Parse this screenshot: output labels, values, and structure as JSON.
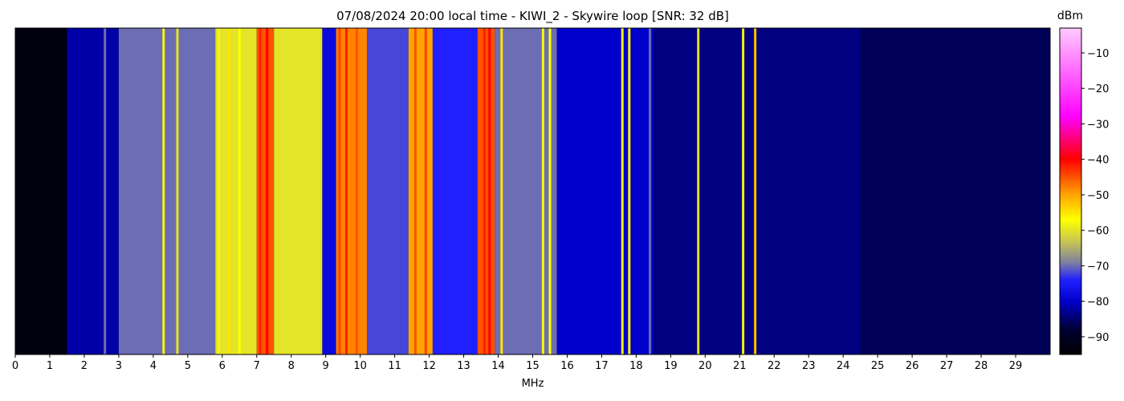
{
  "chart_data": {
    "type": "heatmap",
    "title": "07/08/2024 20:00 local time - KIWI_2 - Skywire loop [SNR: 32 dB]",
    "xlabel": "MHz",
    "ylabel": "",
    "xlim": [
      0,
      30
    ],
    "x_ticks": [
      0,
      1,
      2,
      3,
      4,
      5,
      6,
      7,
      8,
      9,
      10,
      11,
      12,
      13,
      14,
      15,
      16,
      17,
      18,
      19,
      20,
      21,
      22,
      23,
      24,
      25,
      26,
      27,
      28,
      29
    ],
    "colorbar": {
      "label": "dBm",
      "range": [
        -95,
        -3
      ],
      "ticks": [
        -10,
        -20,
        -30,
        -40,
        -50,
        -60,
        -70,
        -80,
        -90
      ],
      "colors": [
        {
          "value": -95,
          "color": "#000000"
        },
        {
          "value": -88,
          "color": "#000033"
        },
        {
          "value": -80,
          "color": "#0000cc"
        },
        {
          "value": -74,
          "color": "#2020ff"
        },
        {
          "value": -69,
          "color": "#8080a0"
        },
        {
          "value": -63,
          "color": "#c8c850"
        },
        {
          "value": -57,
          "color": "#ffff00"
        },
        {
          "value": -50,
          "color": "#ffa500"
        },
        {
          "value": -40,
          "color": "#ff0000"
        },
        {
          "value": -28,
          "color": "#ff00ff"
        },
        {
          "value": -3,
          "color": "#ffccff"
        }
      ]
    },
    "bands": [
      {
        "from_mhz": 0.0,
        "to_mhz": 1.5,
        "level_dbm": -93
      },
      {
        "from_mhz": 1.5,
        "to_mhz": 3.0,
        "level_dbm": -82
      },
      {
        "from_mhz": 3.0,
        "to_mhz": 5.8,
        "level_dbm": -70
      },
      {
        "from_mhz": 5.8,
        "to_mhz": 7.0,
        "level_dbm": -60
      },
      {
        "from_mhz": 7.0,
        "to_mhz": 7.5,
        "level_dbm": -45
      },
      {
        "from_mhz": 7.5,
        "to_mhz": 8.9,
        "level_dbm": -60
      },
      {
        "from_mhz": 8.9,
        "to_mhz": 9.3,
        "level_dbm": -78
      },
      {
        "from_mhz": 9.3,
        "to_mhz": 10.2,
        "level_dbm": -48
      },
      {
        "from_mhz": 10.2,
        "to_mhz": 11.4,
        "level_dbm": -72
      },
      {
        "from_mhz": 11.4,
        "to_mhz": 12.1,
        "level_dbm": -50
      },
      {
        "from_mhz": 12.1,
        "to_mhz": 13.4,
        "level_dbm": -74
      },
      {
        "from_mhz": 13.4,
        "to_mhz": 13.9,
        "level_dbm": -45
      },
      {
        "from_mhz": 13.9,
        "to_mhz": 15.7,
        "level_dbm": -70
      },
      {
        "from_mhz": 15.7,
        "to_mhz": 18.5,
        "level_dbm": -80
      },
      {
        "from_mhz": 18.5,
        "to_mhz": 24.5,
        "level_dbm": -84
      },
      {
        "from_mhz": 24.5,
        "to_mhz": 30.0,
        "level_dbm": -86
      }
    ],
    "signals": [
      {
        "mhz": 2.6,
        "level_dbm": -70
      },
      {
        "mhz": 4.3,
        "level_dbm": -58
      },
      {
        "mhz": 4.7,
        "level_dbm": -60
      },
      {
        "mhz": 5.9,
        "level_dbm": -58
      },
      {
        "mhz": 6.2,
        "level_dbm": -55
      },
      {
        "mhz": 6.5,
        "level_dbm": -57
      },
      {
        "mhz": 7.1,
        "level_dbm": -42
      },
      {
        "mhz": 7.3,
        "level_dbm": -40
      },
      {
        "mhz": 9.4,
        "level_dbm": -44
      },
      {
        "mhz": 9.6,
        "level_dbm": -42
      },
      {
        "mhz": 9.9,
        "level_dbm": -45
      },
      {
        "mhz": 11.6,
        "level_dbm": -45
      },
      {
        "mhz": 11.9,
        "level_dbm": -44
      },
      {
        "mhz": 13.6,
        "level_dbm": -42
      },
      {
        "mhz": 13.75,
        "level_dbm": -40
      },
      {
        "mhz": 14.1,
        "level_dbm": -55
      },
      {
        "mhz": 15.3,
        "level_dbm": -58
      },
      {
        "mhz": 15.5,
        "level_dbm": -57
      },
      {
        "mhz": 17.6,
        "level_dbm": -58
      },
      {
        "mhz": 17.8,
        "level_dbm": -56
      },
      {
        "mhz": 18.4,
        "level_dbm": -70
      },
      {
        "mhz": 19.8,
        "level_dbm": -60
      },
      {
        "mhz": 21.1,
        "level_dbm": -58
      },
      {
        "mhz": 21.45,
        "level_dbm": -52
      }
    ],
    "grid": false,
    "legend": "colorbar-right"
  }
}
